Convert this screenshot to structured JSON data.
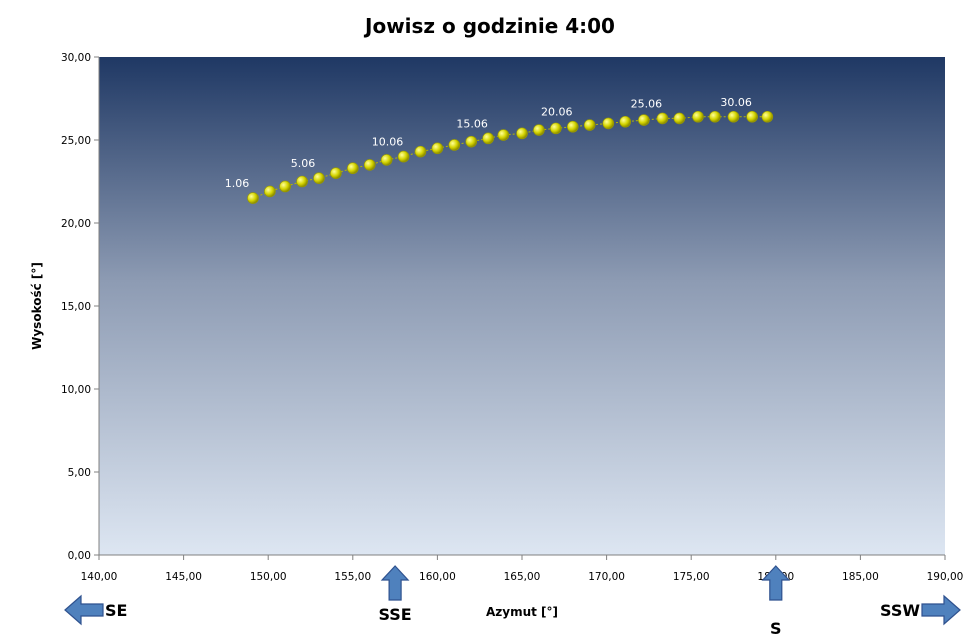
{
  "chart_data": {
    "type": "scatter",
    "title": "Jowisz o godzinie 4:00",
    "xlabel": "Azymut [°]",
    "ylabel": "Wysokość [°]",
    "xlim": [
      140,
      190
    ],
    "ylim": [
      0,
      30
    ],
    "x_ticks": [
      "140,00",
      "145,00",
      "150,00",
      "155,00",
      "160,00",
      "165,00",
      "170,00",
      "175,00",
      "180,00",
      "185,00",
      "190,00"
    ],
    "y_ticks": [
      "0,00",
      "5,00",
      "10,00",
      "15,00",
      "20,00",
      "25,00",
      "30,00"
    ],
    "grid": false,
    "colors": {
      "background_top": "#1f3864",
      "background_bottom": "#dde6f2",
      "marker": "#d4d400",
      "marker_highlight": "#ffff99",
      "line": "#b8b800",
      "arrow_fill": "#4f81bd",
      "arrow_stroke": "#2f528f"
    },
    "series": [
      {
        "x": [
          149.1,
          150.1,
          151.0,
          152.0,
          153.0,
          154.0,
          155.0,
          156.0,
          157.0,
          158.0,
          159.0,
          160.0,
          161.0,
          162.0,
          163.0,
          163.9,
          165.0,
          166.0,
          167.0,
          168.0,
          169.0,
          170.1,
          171.1,
          172.2,
          173.3,
          174.3,
          175.4,
          176.4,
          177.5,
          178.6,
          179.5
        ],
        "y": [
          21.5,
          21.9,
          22.2,
          22.5,
          22.7,
          23.0,
          23.3,
          23.5,
          23.8,
          24.0,
          24.3,
          24.5,
          24.7,
          24.9,
          25.1,
          25.3,
          25.4,
          25.6,
          25.7,
          25.8,
          25.9,
          26.0,
          26.1,
          26.2,
          26.3,
          26.3,
          26.4,
          26.4,
          26.4,
          26.4,
          26.4
        ]
      }
    ],
    "point_labels": [
      {
        "index": 0,
        "text": "1.06"
      },
      {
        "index": 4,
        "text": "5.06"
      },
      {
        "index": 9,
        "text": "10.06"
      },
      {
        "index": 14,
        "text": "15.06"
      },
      {
        "index": 19,
        "text": "20.06"
      },
      {
        "index": 24,
        "text": "25.06"
      },
      {
        "index": 29,
        "text": "30.06"
      }
    ],
    "direction_markers": [
      {
        "label": "SE",
        "arrow": "left",
        "x": 140
      },
      {
        "label": "SSE",
        "arrow": "up",
        "x": 157.5
      },
      {
        "label": "S",
        "arrow": "up",
        "x": 180
      },
      {
        "label": "SSW",
        "arrow": "right",
        "x": 190
      }
    ]
  }
}
